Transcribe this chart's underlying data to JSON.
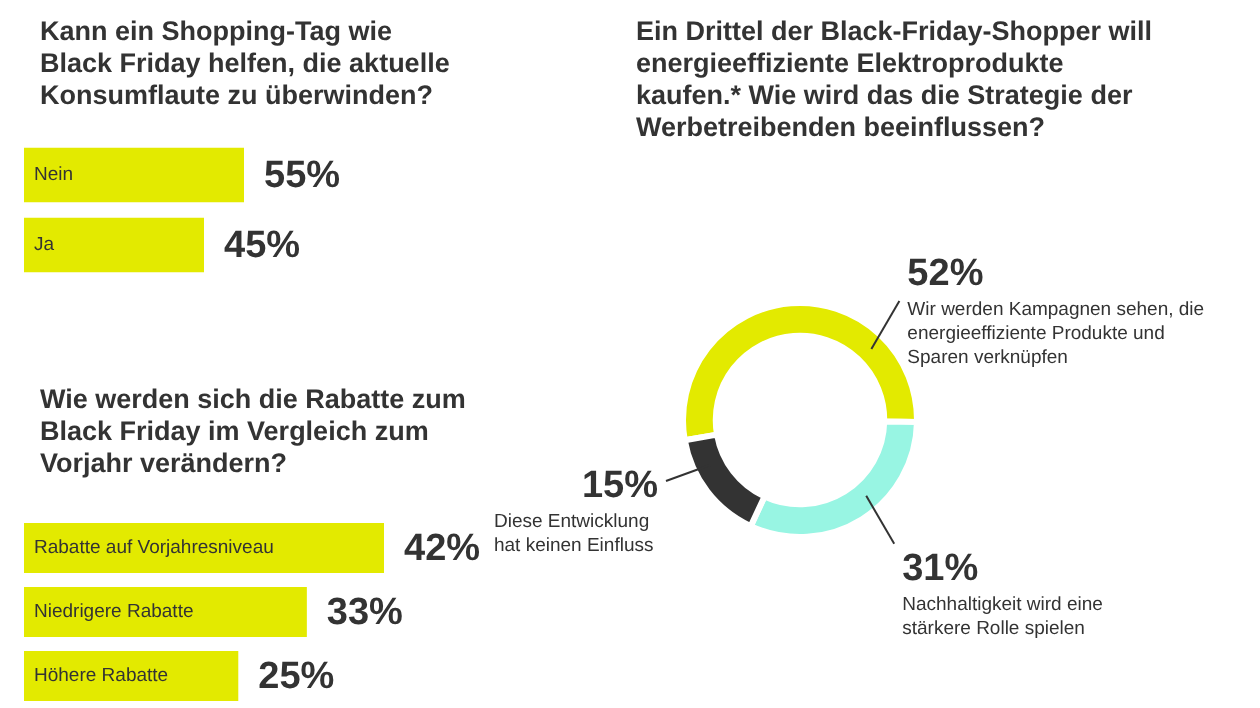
{
  "chart_data": [
    {
      "type": "bar",
      "orientation": "horizontal",
      "title": "Kann ein Shopping-Tag wie Black Friday helfen, die aktuelle Konsumflaute zu überwinden?",
      "categories": [
        "Nein",
        "Ja"
      ],
      "values": [
        55,
        45
      ],
      "color": "#e3ea00",
      "value_labels": [
        "55%",
        "45%"
      ]
    },
    {
      "type": "bar",
      "orientation": "horizontal",
      "title": "Wie werden sich die Rabatte zum Black Friday im Vergleich zum Vorjahr verändern?",
      "categories": [
        "Rabatte auf Vorjahresniveau",
        "Niedrigere Rabatte",
        "Höhere Rabatte"
      ],
      "values": [
        42,
        33,
        25
      ],
      "color": "#e3ea00",
      "value_labels": [
        "42%",
        "33%",
        "25%"
      ]
    },
    {
      "type": "donut",
      "title": "Ein Drittel der Black-Friday-Shopper will energieeffiziente Elektroprodukte kaufen.* Wie wird das die Strategie der Werbetreibenden beeinflussen?",
      "categories": [
        "Wir werden Kampagnen sehen, die energieeffiziente Produkte und Sparen verknüpfen",
        "Nachhaltigkeit wird eine stärkere Rolle spielen",
        "Diese Entwicklung hat keinen Einfluss"
      ],
      "values": [
        52,
        31,
        15
      ],
      "colors": [
        "#e3ea00",
        "#98f5e3",
        "#333333"
      ],
      "value_labels": [
        "52%",
        "31%",
        "15%"
      ]
    }
  ]
}
